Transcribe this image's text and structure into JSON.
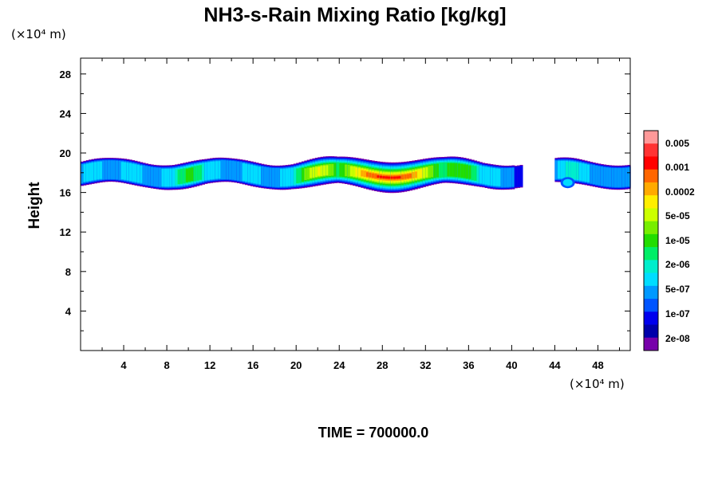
{
  "chart_data": {
    "type": "heatmap",
    "title": "NH3-s-Rain Mixing Ratio [kg/kg]",
    "ylabel": "Height",
    "x_units": "(×10⁴ m)",
    "y_units": "(×10⁴ m)",
    "time_label": "TIME = 700000.0",
    "xlim": [
      0,
      51
    ],
    "ylim": [
      0,
      29.6
    ],
    "x_ticks": [
      4,
      8,
      12,
      16,
      20,
      24,
      28,
      32,
      36,
      40,
      44,
      48
    ],
    "y_ticks": [
      4,
      8,
      12,
      16,
      20,
      24,
      28
    ],
    "x_tick_labels": [
      "4",
      "8",
      "12",
      "16",
      "20",
      "24",
      "28",
      "32",
      "36",
      "40",
      "44",
      "48"
    ],
    "y_tick_labels": [
      "4",
      "8",
      "12",
      "16",
      "20",
      "24",
      "28"
    ],
    "colorbar": {
      "levels": [
        "0.005",
        "0.001",
        "0.0002",
        "5e-05",
        "1e-05",
        "2e-06",
        "5e-07",
        "1e-07",
        "2e-08"
      ],
      "colors": [
        "#ff9999",
        "#ff3333",
        "#ff0000",
        "#ff6600",
        "#ffaa00",
        "#ffee00",
        "#ccff00",
        "#77ee00",
        "#22dd00",
        "#00ee66",
        "#00eecc",
        "#00ddff",
        "#0099ff",
        "#0055ff",
        "#0000ee",
        "#0000aa",
        "#7700aa"
      ]
    },
    "layer": {
      "bottom_km4": 16.5,
      "top_km4": 19.6,
      "gaps_x": [
        [
          41,
          44
        ]
      ]
    }
  }
}
